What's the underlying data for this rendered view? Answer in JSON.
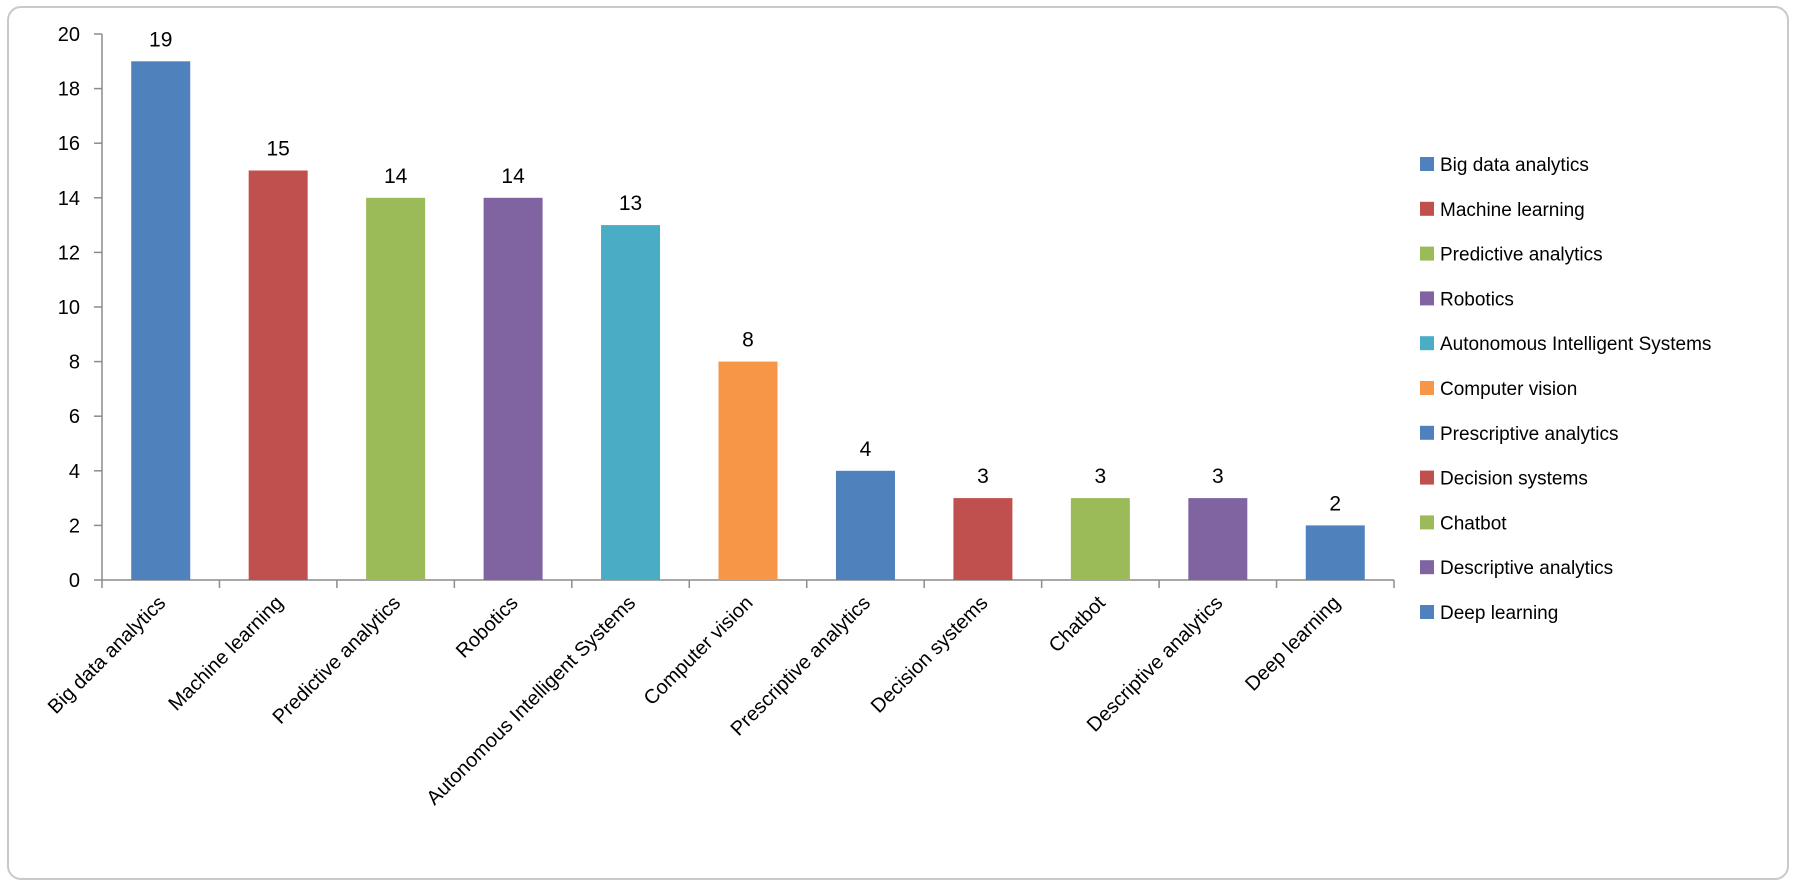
{
  "chart_data": {
    "type": "bar",
    "title": "",
    "xlabel": "",
    "ylabel": "",
    "ylim": [
      0,
      20
    ],
    "yticks": [
      0,
      2,
      4,
      6,
      8,
      10,
      12,
      14,
      16,
      18,
      20
    ],
    "grid": false,
    "legend_position": "right",
    "categories": [
      "Big data analytics",
      "Machine learning",
      "Predictive analytics",
      "Robotics",
      "Autonomous Intelligent Systems",
      "Computer vision",
      "Prescriptive analytics",
      "Decision systems",
      "Chatbot",
      "Descriptive analytics",
      "Deep learning"
    ],
    "values": [
      19,
      15,
      14,
      14,
      13,
      8,
      4,
      3,
      3,
      3,
      2
    ],
    "colors": [
      "#4f81bd",
      "#c0504d",
      "#9bbb59",
      "#8064a2",
      "#4bacc6",
      "#f79646",
      "#4f81bd",
      "#c0504d",
      "#9bbb59",
      "#8064a2",
      "#4f81bd"
    ],
    "data_labels": [
      "19",
      "15",
      "14",
      "14",
      "13",
      "8",
      "4",
      "3",
      "3",
      "3",
      "2"
    ]
  }
}
